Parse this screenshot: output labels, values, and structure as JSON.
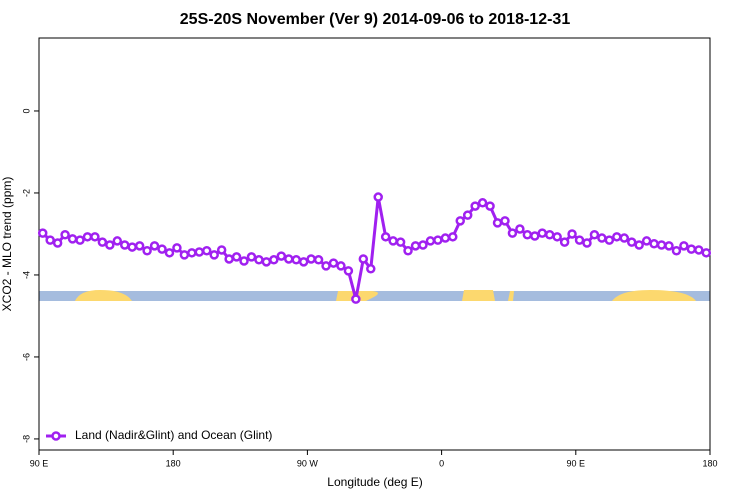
{
  "chart_data": {
    "type": "line",
    "title": "25S-20S November (Ver 9)   2014-09-06 to 2018-12-31",
    "xlabel": "Longitude (deg E)",
    "ylabel": "XCO2 - MLO trend (ppm)",
    "xlim": [
      90,
      540
    ],
    "ylim": [
      -8.27,
      1.78
    ],
    "xticks": [
      {
        "value": 90,
        "label": "90 E"
      },
      180,
      {
        "value": 270,
        "label": "90 W"
      },
      {
        "value": 360,
        "label": "0"
      },
      {
        "value": 450,
        "label": "90 E"
      },
      {
        "value": 540,
        "label": "180"
      }
    ],
    "yticks": [
      -8,
      -6,
      -4,
      -2,
      0
    ],
    "legend": "bottomleft",
    "x": [
      92.5,
      97.5,
      102.5,
      107.5,
      112.5,
      117.5,
      122.5,
      127.5,
      132.5,
      137.5,
      142.5,
      147.5,
      152.5,
      157.5,
      162.5,
      167.5,
      172.5,
      177.5,
      182.5,
      187.5,
      192.5,
      197.5,
      202.5,
      207.5,
      212.5,
      217.5,
      222.5,
      227.5,
      232.5,
      237.5,
      242.5,
      247.5,
      252.5,
      257.5,
      262.5,
      267.5,
      272.5,
      277.5,
      282.5,
      287.5,
      292.5,
      297.5,
      302.5,
      307.5,
      312.5,
      317.5,
      322.5,
      327.5,
      332.5,
      337.5,
      342.5,
      347.5,
      352.5,
      357.5,
      362.5,
      367.5,
      372.5,
      377.5,
      382.5,
      387.5,
      392.5,
      397.5,
      402.5,
      407.5,
      412.5,
      417.5,
      422.5,
      427.5,
      432.5,
      437.5,
      442.5,
      447.5,
      452.5,
      457.5,
      462.5,
      467.5,
      472.5,
      477.5,
      482.5,
      487.5,
      492.5,
      497.5,
      502.5,
      507.5,
      512.5,
      517.5,
      522.5,
      527.5,
      532.5,
      537.5
    ],
    "series": [
      {
        "name": "Land (Nadir&Glint) and Ocean (Glint)",
        "color": "#a020f0",
        "values": [
          -2.98,
          -3.15,
          -3.22,
          -3.02,
          -3.12,
          -3.15,
          -3.07,
          -3.07,
          -3.2,
          -3.27,
          -3.17,
          -3.27,
          -3.32,
          -3.29,
          -3.41,
          -3.29,
          -3.37,
          -3.46,
          -3.34,
          -3.51,
          -3.46,
          -3.44,
          -3.41,
          -3.51,
          -3.39,
          -3.61,
          -3.56,
          -3.66,
          -3.56,
          -3.63,
          -3.68,
          -3.63,
          -3.54,
          -3.61,
          -3.63,
          -3.68,
          -3.61,
          -3.63,
          -3.78,
          -3.71,
          -3.78,
          -3.9,
          -4.59,
          -3.61,
          -3.85,
          -2.1,
          -3.07,
          -3.17,
          -3.2,
          -3.41,
          -3.29,
          -3.27,
          -3.17,
          -3.15,
          -3.1,
          -3.07,
          -2.68,
          -2.54,
          -2.32,
          -2.24,
          -2.32,
          -2.73,
          -2.68,
          -2.98,
          -2.88,
          -3.02,
          -3.05,
          -2.98,
          -3.02,
          -3.07,
          -3.2,
          -3.0,
          -3.15,
          -3.22,
          -3.02,
          -3.1,
          -3.15,
          -3.07,
          -3.1,
          -3.2,
          -3.27,
          -3.17,
          -3.24,
          -3.27,
          -3.29,
          -3.41,
          -3.29,
          -3.37,
          -3.39,
          -3.46
        ]
      }
    ]
  }
}
